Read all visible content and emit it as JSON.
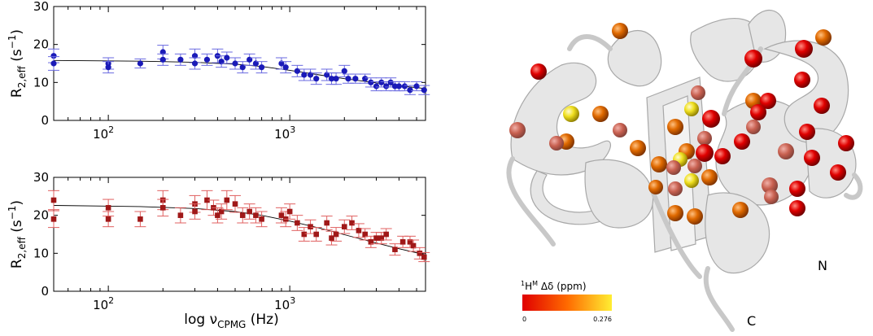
{
  "chart_data": [
    {
      "type": "scatter",
      "ylabel": "R",
      "ylabel_sub": "2,eff",
      "ylabel_unit": "(s",
      "ylabel_sup": "−1",
      "ylabel_close": ")",
      "xlabel": "",
      "xscale": "log",
      "xlim": [
        50,
        5600
      ],
      "ylim": [
        0,
        30
      ],
      "xticks": [
        "10",
        "10"
      ],
      "xtick_exp": [
        "2",
        "3"
      ],
      "yticks": [
        "0",
        "10",
        "20",
        "30"
      ],
      "color": "#1a1ab8",
      "errcolor": "#6a6ae0",
      "marker": "circle",
      "points": [
        {
          "x": 50,
          "y": 17,
          "err": 1.8
        },
        {
          "x": 50,
          "y": 15,
          "err": 1.8
        },
        {
          "x": 100,
          "y": 15,
          "err": 1.5
        },
        {
          "x": 100,
          "y": 14,
          "err": 1.5
        },
        {
          "x": 150,
          "y": 15,
          "err": 1.2
        },
        {
          "x": 200,
          "y": 18,
          "err": 1.8
        },
        {
          "x": 200,
          "y": 16,
          "err": 1.5
        },
        {
          "x": 250,
          "y": 16,
          "err": 1.5
        },
        {
          "x": 300,
          "y": 17,
          "err": 1.8
        },
        {
          "x": 300,
          "y": 15,
          "err": 1.5
        },
        {
          "x": 350,
          "y": 16,
          "err": 1.5
        },
        {
          "x": 400,
          "y": 17,
          "err": 1.8
        },
        {
          "x": 420,
          "y": 15.5,
          "err": 1.5
        },
        {
          "x": 450,
          "y": 16.5,
          "err": 1.5
        },
        {
          "x": 500,
          "y": 15,
          "err": 1.5
        },
        {
          "x": 550,
          "y": 14,
          "err": 1.5
        },
        {
          "x": 600,
          "y": 16,
          "err": 1.5
        },
        {
          "x": 650,
          "y": 15,
          "err": 1.5
        },
        {
          "x": 700,
          "y": 14,
          "err": 1.5
        },
        {
          "x": 900,
          "y": 15,
          "err": 1.5
        },
        {
          "x": 950,
          "y": 14,
          "err": 1.5
        },
        {
          "x": 1100,
          "y": 13,
          "err": 1.5
        },
        {
          "x": 1200,
          "y": 12,
          "err": 1.5
        },
        {
          "x": 1300,
          "y": 12,
          "err": 1.5
        },
        {
          "x": 1400,
          "y": 11,
          "err": 1.5
        },
        {
          "x": 1600,
          "y": 12,
          "err": 1.5
        },
        {
          "x": 1700,
          "y": 11,
          "err": 1.5
        },
        {
          "x": 1800,
          "y": 11,
          "err": 1.5
        },
        {
          "x": 2000,
          "y": 13,
          "err": 1.5
        },
        {
          "x": 2100,
          "y": 11,
          "err": 1.2
        },
        {
          "x": 2300,
          "y": 11,
          "err": 1.2
        },
        {
          "x": 2600,
          "y": 11,
          "err": 1.2
        },
        {
          "x": 2800,
          "y": 10,
          "err": 1.2
        },
        {
          "x": 3000,
          "y": 9,
          "err": 1.2
        },
        {
          "x": 3200,
          "y": 10,
          "err": 1.2
        },
        {
          "x": 3400,
          "y": 9,
          "err": 1.2
        },
        {
          "x": 3600,
          "y": 10,
          "err": 1.2
        },
        {
          "x": 3800,
          "y": 9,
          "err": 1.2
        },
        {
          "x": 4000,
          "y": 9,
          "err": 1.2
        },
        {
          "x": 4300,
          "y": 9,
          "err": 1.2
        },
        {
          "x": 4600,
          "y": 8,
          "err": 1.2
        },
        {
          "x": 5000,
          "y": 9,
          "err": 1.2
        },
        {
          "x": 5500,
          "y": 8,
          "err": 1.2
        }
      ],
      "fit": [
        [
          50,
          15.8
        ],
        [
          150,
          15.6
        ],
        [
          300,
          15.3
        ],
        [
          500,
          14.8
        ],
        [
          700,
          14.2
        ],
        [
          1000,
          13.2
        ],
        [
          1500,
          11.9
        ],
        [
          2000,
          11.0
        ],
        [
          3000,
          9.9
        ],
        [
          4000,
          9.1
        ],
        [
          5600,
          8.4
        ]
      ]
    },
    {
      "type": "scatter",
      "ylabel": "R",
      "ylabel_sub": "2,eff",
      "ylabel_unit": "(s",
      "ylabel_sup": "−1",
      "ylabel_close": ")",
      "xlabel": "log ν",
      "xlabel_sub": "CPMG",
      "xlabel_unit": " (Hz)",
      "xscale": "log",
      "xlim": [
        50,
        5600
      ],
      "ylim": [
        0,
        30
      ],
      "xticks": [
        "10",
        "10"
      ],
      "xtick_exp": [
        "2",
        "3"
      ],
      "yticks": [
        "0",
        "10",
        "20",
        "30"
      ],
      "color": "#a01818",
      "errcolor": "#e06060",
      "marker": "square",
      "points": [
        {
          "x": 50,
          "y": 24,
          "err": 2.5
        },
        {
          "x": 50,
          "y": 19,
          "err": 2.2
        },
        {
          "x": 100,
          "y": 22,
          "err": 2.2
        },
        {
          "x": 100,
          "y": 19,
          "err": 2.0
        },
        {
          "x": 150,
          "y": 19,
          "err": 2.0
        },
        {
          "x": 200,
          "y": 24,
          "err": 2.5
        },
        {
          "x": 200,
          "y": 22,
          "err": 2.2
        },
        {
          "x": 250,
          "y": 20,
          "err": 2.0
        },
        {
          "x": 300,
          "y": 23,
          "err": 2.2
        },
        {
          "x": 300,
          "y": 21,
          "err": 2.0
        },
        {
          "x": 350,
          "y": 24,
          "err": 2.5
        },
        {
          "x": 380,
          "y": 22,
          "err": 2.0
        },
        {
          "x": 400,
          "y": 20,
          "err": 2.0
        },
        {
          "x": 420,
          "y": 21,
          "err": 2.0
        },
        {
          "x": 450,
          "y": 24,
          "err": 2.5
        },
        {
          "x": 500,
          "y": 23,
          "err": 2.2
        },
        {
          "x": 550,
          "y": 20,
          "err": 2.0
        },
        {
          "x": 600,
          "y": 21,
          "err": 2.0
        },
        {
          "x": 650,
          "y": 20,
          "err": 2.0
        },
        {
          "x": 700,
          "y": 19,
          "err": 2.0
        },
        {
          "x": 900,
          "y": 20,
          "err": 2.0
        },
        {
          "x": 950,
          "y": 19,
          "err": 2.0
        },
        {
          "x": 1000,
          "y": 21,
          "err": 2.0
        },
        {
          "x": 1100,
          "y": 18,
          "err": 2.0
        },
        {
          "x": 1200,
          "y": 15,
          "err": 1.8
        },
        {
          "x": 1300,
          "y": 17,
          "err": 1.8
        },
        {
          "x": 1400,
          "y": 15,
          "err": 1.8
        },
        {
          "x": 1600,
          "y": 18,
          "err": 1.8
        },
        {
          "x": 1700,
          "y": 14,
          "err": 1.8
        },
        {
          "x": 1800,
          "y": 15,
          "err": 1.8
        },
        {
          "x": 2000,
          "y": 17,
          "err": 1.8
        },
        {
          "x": 2200,
          "y": 18,
          "err": 1.8
        },
        {
          "x": 2400,
          "y": 16,
          "err": 1.8
        },
        {
          "x": 2600,
          "y": 15,
          "err": 1.5
        },
        {
          "x": 2800,
          "y": 13,
          "err": 1.5
        },
        {
          "x": 3000,
          "y": 14,
          "err": 1.5
        },
        {
          "x": 3200,
          "y": 14,
          "err": 1.5
        },
        {
          "x": 3400,
          "y": 15,
          "err": 1.5
        },
        {
          "x": 3800,
          "y": 11,
          "err": 1.5
        },
        {
          "x": 4200,
          "y": 13,
          "err": 1.5
        },
        {
          "x": 4600,
          "y": 13,
          "err": 1.5
        },
        {
          "x": 4800,
          "y": 12,
          "err": 1.5
        },
        {
          "x": 5200,
          "y": 10,
          "err": 1.5
        },
        {
          "x": 5500,
          "y": 9,
          "err": 1.2
        }
      ],
      "fit": [
        [
          50,
          22.6
        ],
        [
          150,
          22.3
        ],
        [
          300,
          21.8
        ],
        [
          500,
          21.0
        ],
        [
          700,
          20.0
        ],
        [
          1000,
          18.5
        ],
        [
          1500,
          16.5
        ],
        [
          2000,
          14.9
        ],
        [
          3000,
          12.7
        ],
        [
          4000,
          11.2
        ],
        [
          5600,
          9.6
        ]
      ]
    }
  ],
  "structure": {
    "label_n": "N",
    "label_c": "C",
    "colorbar_title_pre": "1",
    "colorbar_title_h": "H",
    "colorbar_title_sup": "M",
    "colorbar_title_post": " Δδ (ppm)",
    "colorbar_min": "0",
    "colorbar_max": "0.276",
    "colorbar_colors": [
      "#e00000",
      "#ff6a00",
      "#ffee33"
    ]
  }
}
